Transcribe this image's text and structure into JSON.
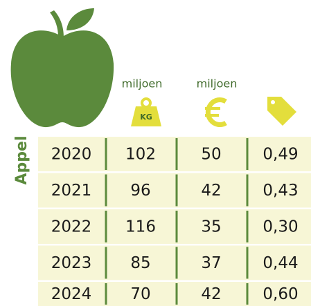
{
  "product": "Appel",
  "header": {
    "weight_unit": "miljoen",
    "weight_icon_text": "KG",
    "money_unit": "miljoen"
  },
  "table": {
    "rows": [
      [
        2020,
        102,
        50,
        "0,49"
      ],
      [
        2021,
        96,
        42,
        "0,43"
      ],
      [
        2022,
        116,
        35,
        "0,30"
      ],
      [
        2023,
        85,
        37,
        "0,44"
      ],
      [
        2024,
        70,
        42,
        "0,60"
      ]
    ]
  }
}
